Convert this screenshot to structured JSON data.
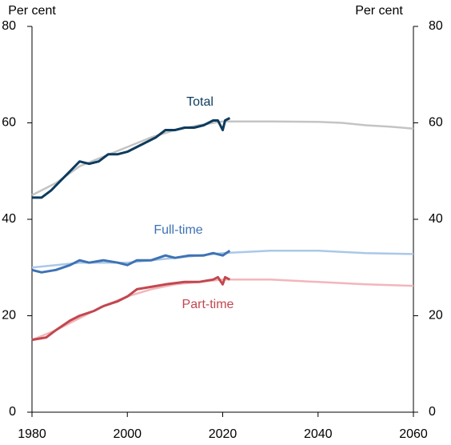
{
  "chart_data": {
    "type": "line",
    "y_label": "Per cent",
    "y2_label": "Per cent",
    "xlim": [
      1980,
      2060
    ],
    "xticks": [
      1980,
      2000,
      2020,
      2040,
      2060
    ],
    "ylim": [
      0,
      80
    ],
    "yticks": [
      0,
      20,
      40,
      60,
      80
    ],
    "y2lim": [
      0,
      80
    ],
    "y2ticks": [
      0,
      20,
      40,
      60,
      80
    ],
    "series": [
      {
        "color": "#c4c4c4",
        "x": [
          1980,
          1985,
          1990,
          1995,
          2000,
          2005,
          2010,
          2015,
          2020,
          2025,
          2030,
          2040,
          2045,
          2050,
          2055,
          2060
        ],
        "values": [
          45,
          47.5,
          51,
          53,
          55,
          57,
          58.5,
          59.5,
          60.3,
          60.3,
          60.3,
          60.2,
          60,
          59.5,
          59.2,
          58.8
        ]
      },
      {
        "color": "#aac8e8",
        "x": [
          1980,
          1990,
          2000,
          2010,
          2020,
          2030,
          2040,
          2050,
          2060
        ],
        "values": [
          30,
          31,
          31,
          32,
          33,
          33.5,
          33.5,
          33,
          32.8
        ]
      },
      {
        "color": "#f2b6ba",
        "x": [
          1980,
          1985,
          1990,
          1995,
          2000,
          2005,
          2010,
          2020,
          2030,
          2040,
          2050,
          2060
        ],
        "values": [
          15,
          17,
          19.5,
          22,
          24,
          25.5,
          26.5,
          27.5,
          27.5,
          27,
          26.5,
          26.2
        ]
      },
      {
        "name": "Total",
        "color": "#0c3b5e",
        "x": [
          1980,
          1982,
          1984,
          1986,
          1988,
          1990,
          1992,
          1994,
          1996,
          1998,
          2000,
          2002,
          2004,
          2006,
          2008,
          2010,
          2012,
          2014,
          2016,
          2018,
          2019,
          2020,
          2020.5,
          2021.5
        ],
        "values": [
          44.5,
          44.5,
          46,
          48,
          50,
          52,
          51.5,
          52,
          53.5,
          53.5,
          54,
          55,
          56,
          57,
          58.5,
          58.5,
          59,
          59,
          59.5,
          60.5,
          60.5,
          58.5,
          60.5,
          61
        ]
      },
      {
        "name": "Full-time",
        "color": "#3f72b4",
        "x": [
          1980,
          1982,
          1985,
          1988,
          1990,
          1992,
          1995,
          1998,
          2000,
          2002,
          2005,
          2008,
          2010,
          2013,
          2016,
          2018,
          2020,
          2021.5
        ],
        "values": [
          29.5,
          29,
          29.5,
          30.5,
          31.5,
          31,
          31.5,
          31,
          30.5,
          31.5,
          31.5,
          32.5,
          32,
          32.5,
          32.5,
          33,
          32.5,
          33.5
        ]
      },
      {
        "name": "Part-time",
        "color": "#c2474f",
        "x": [
          1980,
          1983,
          1985,
          1988,
          1990,
          1993,
          1995,
          1998,
          2000,
          2002,
          2005,
          2008,
          2012,
          2015,
          2018,
          2019,
          2020,
          2020.5,
          2021.5
        ],
        "values": [
          15,
          15.5,
          17,
          19,
          20,
          21,
          22,
          23,
          24,
          25.5,
          26,
          26.5,
          27,
          27,
          27.5,
          28,
          26.5,
          28,
          27.5
        ]
      }
    ]
  }
}
